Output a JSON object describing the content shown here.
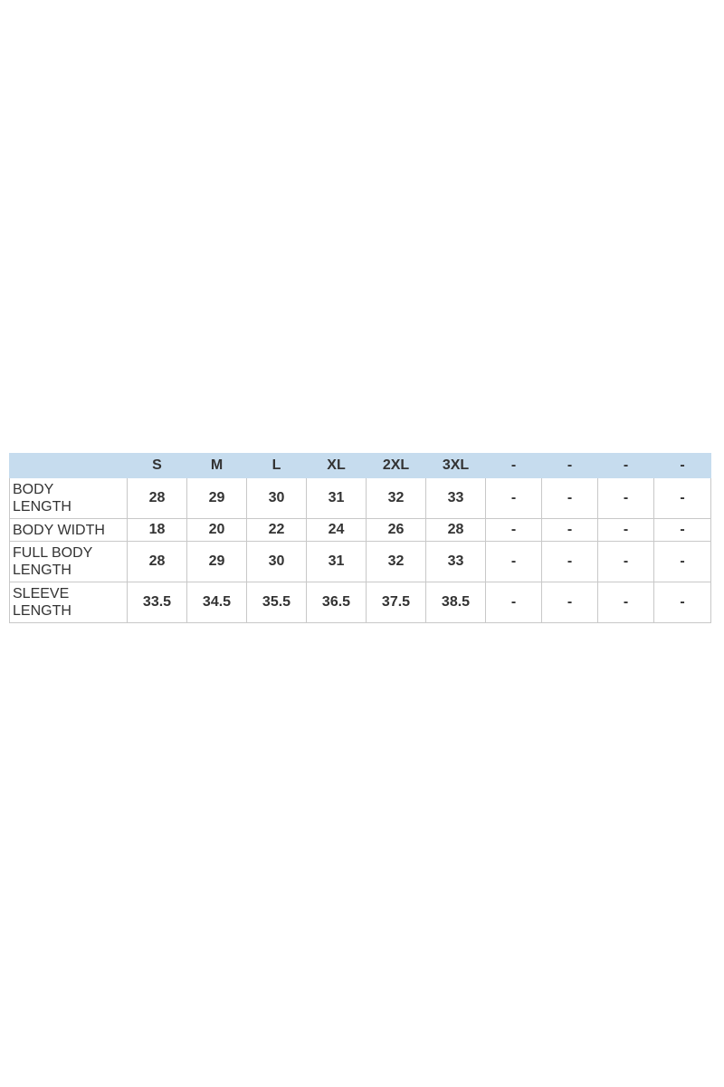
{
  "table": {
    "header": [
      "S",
      "M",
      "L",
      "XL",
      "2XL",
      "3XL",
      "-",
      "-",
      "-",
      "-"
    ],
    "rows": [
      [
        "BODY LENGTH",
        "28",
        "29",
        "30",
        "31",
        "32",
        "33",
        "-",
        "-",
        "-",
        "-"
      ],
      [
        "BODY WIDTH",
        "18",
        "20",
        "22",
        "24",
        "26",
        "28",
        "-",
        "-",
        "-",
        "-"
      ],
      [
        "FULL BODY LENGTH",
        "28",
        "29",
        "30",
        "31",
        "32",
        "33",
        "-",
        "-",
        "-",
        "-"
      ],
      [
        "SLEEVE LENGTH",
        "33.5",
        "34.5",
        "35.5",
        "36.5",
        "37.5",
        "38.5",
        "-",
        "-",
        "-",
        "-"
      ]
    ]
  }
}
